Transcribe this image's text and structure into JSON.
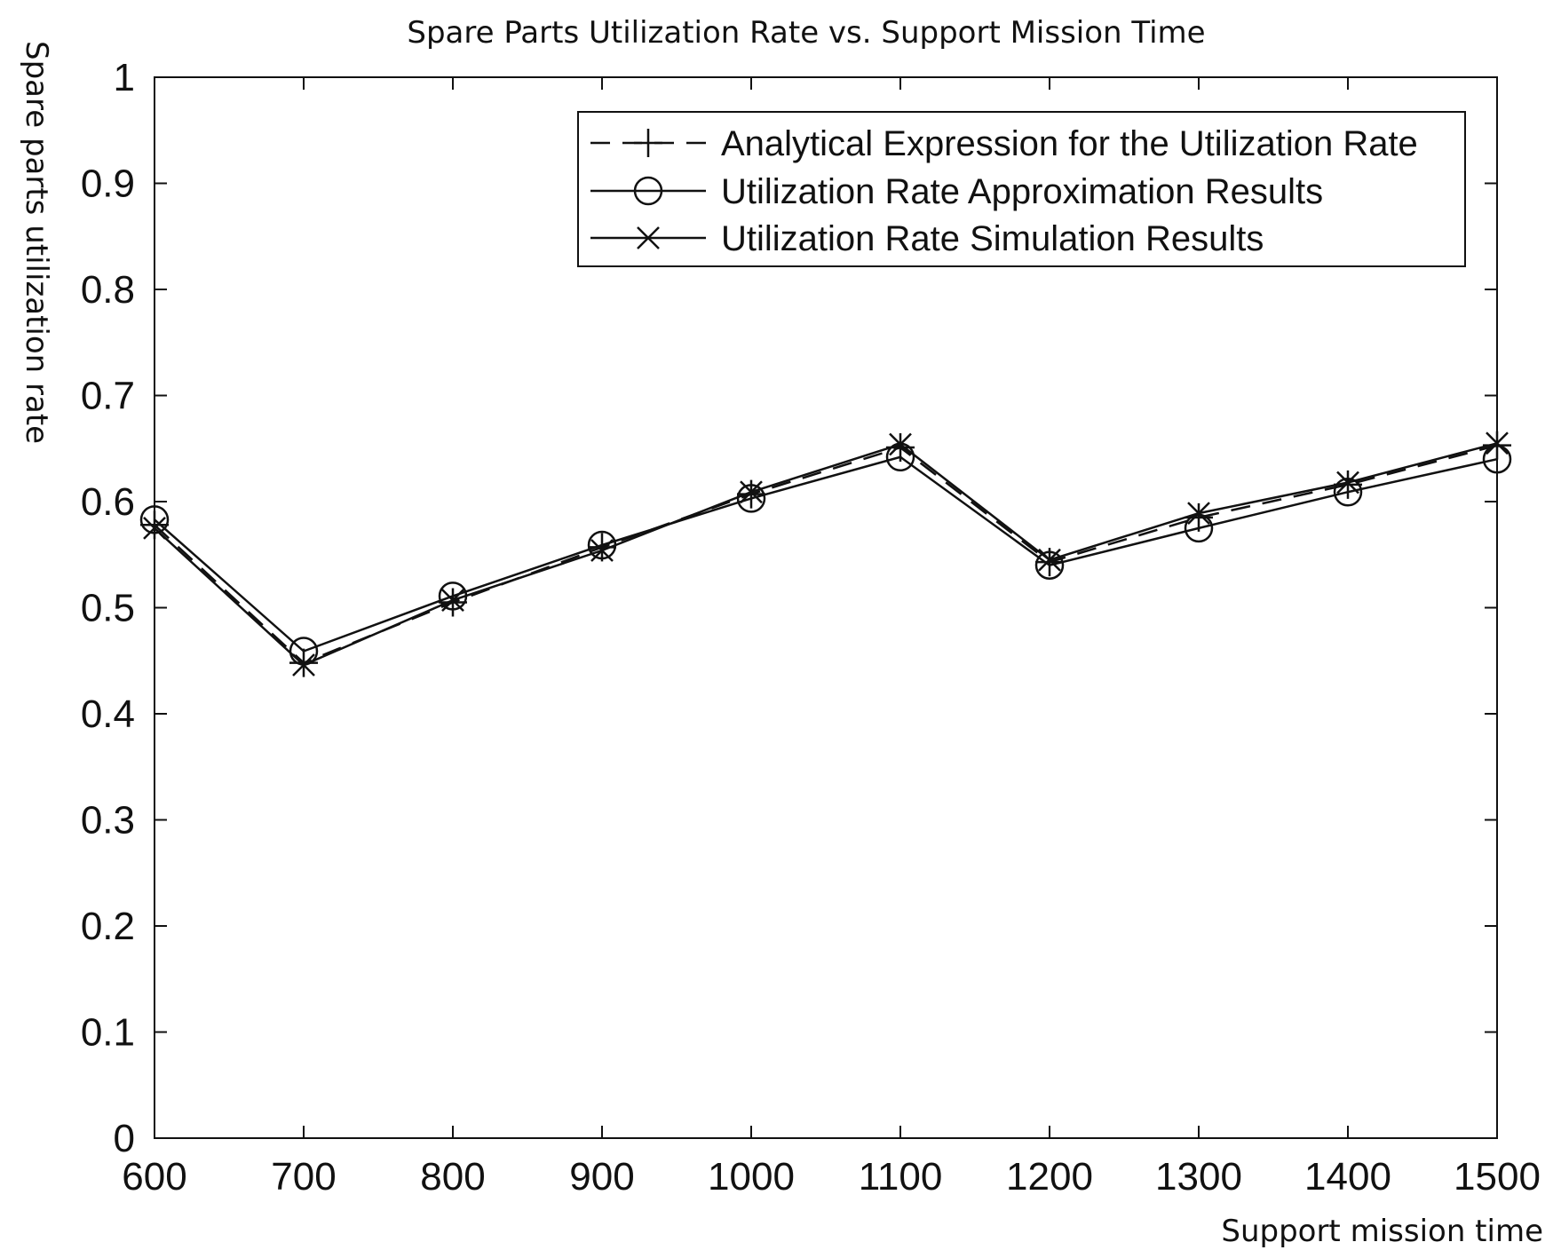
{
  "chart_data": {
    "type": "line",
    "title": "Spare Parts Utilization Rate vs. Support Mission Time",
    "xlabel": "Support mission time",
    "ylabel": "Spare parts utilization rate",
    "x": [
      600,
      700,
      800,
      900,
      1000,
      1100,
      1200,
      1300,
      1400,
      1500
    ],
    "xlim": [
      600,
      1500
    ],
    "ylim": [
      0,
      1
    ],
    "xticks": [
      "600",
      "700",
      "800",
      "900",
      "1000",
      "1100",
      "1200",
      "1300",
      "1400",
      "1500"
    ],
    "yticks": [
      "0",
      "0.1",
      "0.2",
      "0.3",
      "0.4",
      "0.5",
      "0.6",
      "0.7",
      "0.8",
      "0.9",
      "1"
    ],
    "grid": false,
    "legend_position": "top-right",
    "series": [
      {
        "name": "Analytical Expression for the Utilization Rate",
        "line_style": "dashed",
        "marker": "plus",
        "values": [
          0.578,
          0.448,
          0.505,
          0.557,
          0.607,
          0.651,
          0.543,
          0.585,
          0.616,
          0.653
        ]
      },
      {
        "name": "Utilization Rate Approximation Results",
        "line_style": "solid",
        "marker": "circle",
        "values": [
          0.583,
          0.459,
          0.511,
          0.559,
          0.603,
          0.642,
          0.54,
          0.575,
          0.609,
          0.64
        ]
      },
      {
        "name": "Utilization Rate Simulation Results",
        "line_style": "solid",
        "marker": "x",
        "values": [
          0.575,
          0.446,
          0.507,
          0.554,
          0.609,
          0.654,
          0.545,
          0.589,
          0.618,
          0.655
        ]
      }
    ],
    "colors": {
      "line": "#111111",
      "axes": "#111111",
      "background": "#ffffff"
    }
  }
}
